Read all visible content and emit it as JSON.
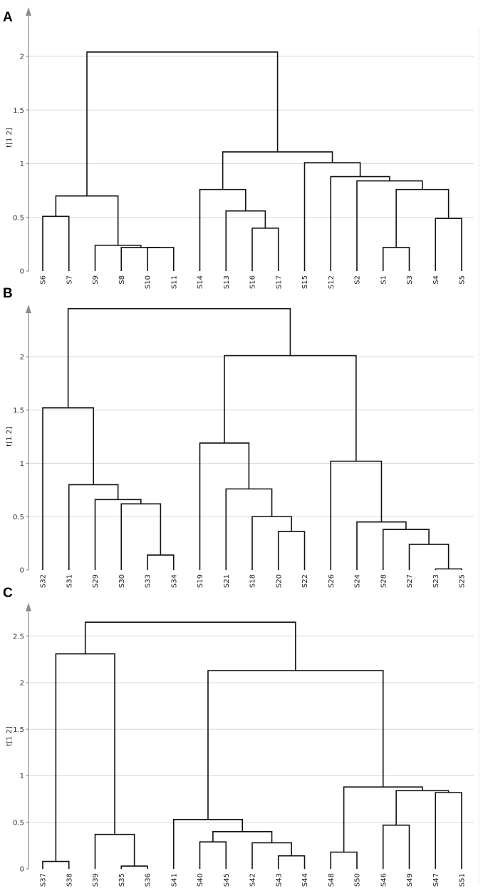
{
  "colors": {
    "link": "#111111",
    "grid": "#d9d9d9",
    "axis": "#8c8c8c"
  },
  "chart_data": [
    {
      "type": "dendrogram",
      "panel": "A",
      "ylabel": "t[1 2]",
      "ylim": [
        0,
        2.2
      ],
      "yticks": [
        0,
        0.5,
        1,
        1.5,
        2
      ],
      "ytick_labels": [
        "0",
        "0.5",
        "1",
        "1.5",
        "2"
      ],
      "leaves": [
        "S6",
        "S7",
        "S9",
        "S8",
        "S10",
        "S11",
        "S14",
        "S13",
        "S16",
        "S17",
        "S15",
        "S12",
        "S2",
        "S1",
        "S3",
        "S4",
        "S5"
      ],
      "merges": [
        [
          "S6",
          "S7",
          0.51
        ],
        [
          "S10",
          "S11",
          0.22
        ],
        [
          "S8",
          1,
          0.22
        ],
        [
          "S9",
          2,
          0.24
        ],
        [
          0,
          3,
          0.7
        ],
        [
          "S16",
          "S17",
          0.4
        ],
        [
          "S13",
          5,
          0.56
        ],
        [
          "S14",
          6,
          0.76
        ],
        [
          "S1",
          "S3",
          0.22
        ],
        [
          "S4",
          "S5",
          0.49
        ],
        [
          8,
          9,
          0.76
        ],
        [
          "S2",
          10,
          0.84
        ],
        [
          "S12",
          11,
          0.88
        ],
        [
          "S15",
          12,
          1.01
        ],
        [
          7,
          13,
          1.11
        ],
        [
          4,
          14,
          2.04
        ]
      ]
    },
    {
      "type": "dendrogram",
      "panel": "B",
      "ylabel": "t[1 2]",
      "ylim": [
        0,
        2.5
      ],
      "yticks": [
        0,
        0.5,
        1,
        1.5,
        2
      ],
      "ytick_labels": [
        "0",
        "0.5",
        "1",
        "1.5",
        "2"
      ],
      "leaves": [
        "S32",
        "S31",
        "S29",
        "S30",
        "S33",
        "S34",
        "S19",
        "S21",
        "S18",
        "S20",
        "S22",
        "S26",
        "S24",
        "S28",
        "S27",
        "S23",
        "S25"
      ],
      "merges": [
        [
          "S33",
          "S34",
          0.14
        ],
        [
          "S30",
          0,
          0.62
        ],
        [
          "S29",
          1,
          0.66
        ],
        [
          "S31",
          2,
          0.8
        ],
        [
          "S32",
          3,
          1.52
        ],
        [
          "S20",
          "S22",
          0.36
        ],
        [
          "S18",
          5,
          0.5
        ],
        [
          "S21",
          6,
          0.76
        ],
        [
          "S19",
          7,
          1.19
        ],
        [
          "S23",
          "S25",
          0.01
        ],
        [
          "S27",
          9,
          0.24
        ],
        [
          "S28",
          10,
          0.38
        ],
        [
          "S24",
          11,
          0.45
        ],
        [
          "S26",
          12,
          1.02
        ],
        [
          8,
          13,
          2.01
        ],
        [
          4,
          14,
          2.45
        ]
      ]
    },
    {
      "type": "dendrogram",
      "panel": "C",
      "ylabel": "t[1 2]",
      "ylim": [
        0,
        2.8
      ],
      "yticks": [
        0,
        0.5,
        1,
        1.5,
        2,
        2.5
      ],
      "ytick_labels": [
        "0",
        "0.5",
        "1",
        "1.5",
        "2",
        "2.5"
      ],
      "leaves": [
        "S37",
        "S38",
        "S39",
        "S35",
        "S36",
        "S41",
        "S40",
        "S45",
        "S42",
        "S43",
        "S44",
        "S48",
        "S50",
        "S46",
        "S49",
        "S47",
        "S51"
      ],
      "merges": [
        [
          "S37",
          "S38",
          0.08
        ],
        [
          "S35",
          "S36",
          0.03
        ],
        [
          "S39",
          1,
          0.37
        ],
        [
          0,
          2,
          2.31
        ],
        [
          "S40",
          "S45",
          0.29
        ],
        [
          "S43",
          "S44",
          0.14
        ],
        [
          "S42",
          5,
          0.28
        ],
        [
          4,
          6,
          0.4
        ],
        [
          "S41",
          7,
          0.53
        ],
        [
          "S48",
          "S50",
          0.18
        ],
        [
          "S46",
          "S49",
          0.47
        ],
        [
          "S47",
          "S51",
          0.82
        ],
        [
          10,
          11,
          0.84
        ],
        [
          9,
          12,
          0.88
        ],
        [
          8,
          13,
          2.13
        ],
        [
          3,
          14,
          2.65
        ]
      ]
    }
  ]
}
